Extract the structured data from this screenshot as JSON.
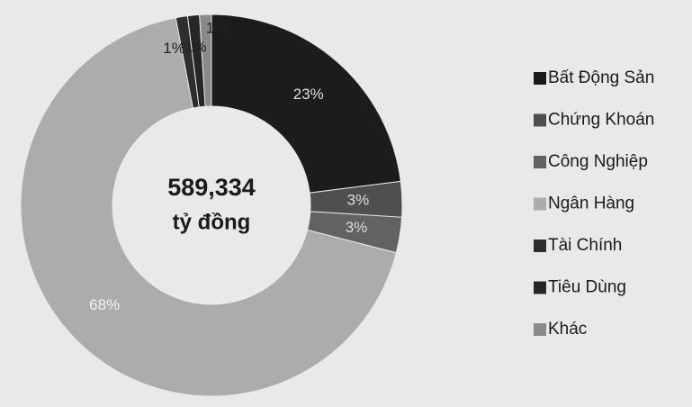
{
  "chart_data": {
    "type": "pie",
    "categories": [
      "Bất Động Sản",
      "Chứng Khoán",
      "Công Nghiệp",
      "Ngân Hàng",
      "Tài Chính",
      "Tiêu Dùng",
      "Khác"
    ],
    "values": [
      23,
      3,
      3,
      68,
      1,
      1,
      1
    ],
    "value_labels": [
      "23%",
      "3%",
      "3%",
      "68%",
      "1%",
      "1%",
      "1%"
    ],
    "colors": [
      "#1c1c1c",
      "#4f4f4f",
      "#626262",
      "#acacac",
      "#2e2e2e",
      "#262626",
      "#8a8a8a"
    ],
    "annotations": [
      "589,334",
      "tỷ đồng"
    ],
    "legend": "right"
  }
}
